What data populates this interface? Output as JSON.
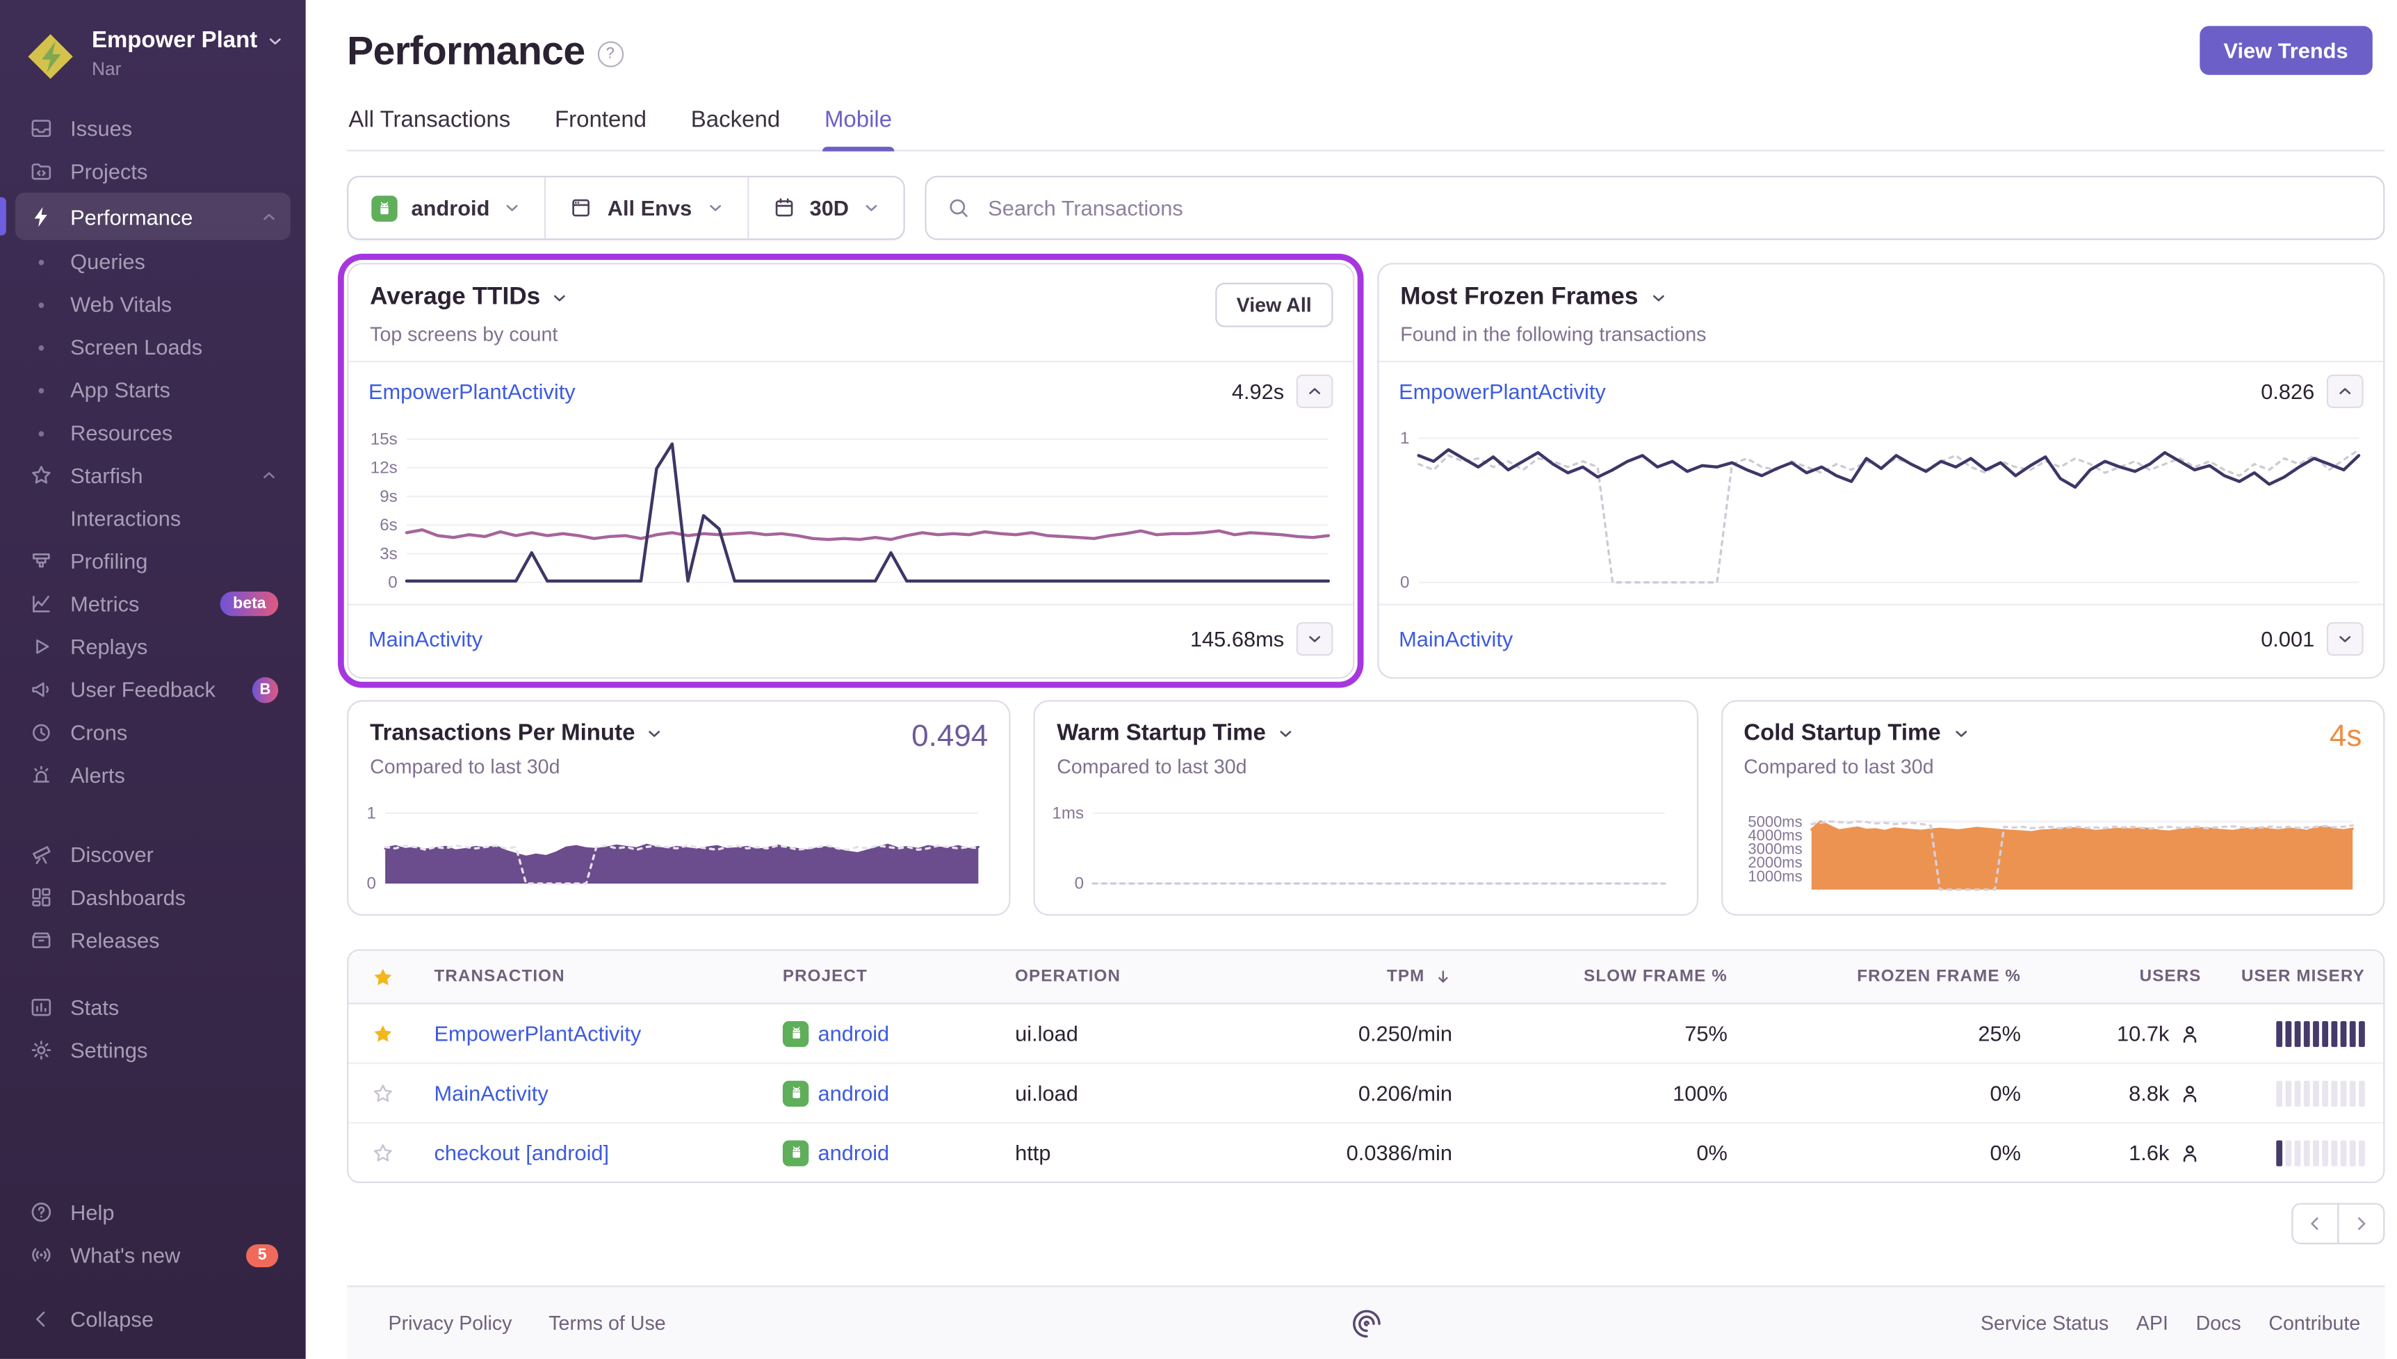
{
  "theme": {
    "accent": "#6C5FC7",
    "highlight": "#A637E0",
    "link": "#3D5BE0",
    "heading": "#2B2233",
    "muted": "#80708F",
    "gold": "#F1B71C",
    "orange_value": "#EE8D40",
    "sidebar_top": "#3E2D55",
    "sidebar_bottom": "#342443",
    "misery_filled": "#463A6B",
    "misery_empty": "#E9E5EF",
    "android_green": "#5FAE5A",
    "badge_red": "#EF6A5A"
  },
  "sidebar": {
    "org": {
      "name": "Empower Plant",
      "sub": "Nar"
    },
    "items": [
      {
        "icon": "issues",
        "label": "Issues"
      },
      {
        "icon": "projects",
        "label": "Projects"
      },
      {
        "icon": "lightning",
        "label": "Performance",
        "active": true,
        "chevron": "up"
      },
      {
        "bullet": true,
        "label": "Queries"
      },
      {
        "bullet": true,
        "label": "Web Vitals"
      },
      {
        "bullet": true,
        "label": "Screen Loads"
      },
      {
        "bullet": true,
        "label": "App Starts"
      },
      {
        "bullet": true,
        "label": "Resources"
      },
      {
        "icon": "star",
        "label": "Starfish",
        "chevron": "up"
      },
      {
        "indent": true,
        "label": "Interactions"
      },
      {
        "icon": "profiling",
        "label": "Profiling"
      },
      {
        "icon": "metrics",
        "label": "Metrics",
        "badge": {
          "text": "beta",
          "style": "pill"
        }
      },
      {
        "icon": "replays",
        "label": "Replays"
      },
      {
        "icon": "megaphone",
        "label": "User Feedback",
        "badge": {
          "text": "B",
          "style": "circle"
        }
      },
      {
        "icon": "crons",
        "label": "Crons"
      },
      {
        "icon": "alerts",
        "label": "Alerts"
      },
      {
        "icon": "discover",
        "label": "Discover",
        "gap": 24
      },
      {
        "icon": "dashboards",
        "label": "Dashboards"
      },
      {
        "icon": "releases",
        "label": "Releases"
      },
      {
        "icon": "stats",
        "label": "Stats",
        "gap": 16
      },
      {
        "icon": "settings",
        "label": "Settings"
      }
    ],
    "footer_items": [
      {
        "icon": "help",
        "label": "Help"
      },
      {
        "icon": "broadcast",
        "label": "What's new",
        "badge": {
          "text": "5",
          "style": "dot"
        }
      },
      {
        "icon": "collapse",
        "label": "Collapse",
        "gap": 14
      }
    ]
  },
  "header": {
    "title": "Performance",
    "help": "?",
    "view_trends": "View Trends",
    "tabs": [
      {
        "label": "All Transactions"
      },
      {
        "label": "Frontend"
      },
      {
        "label": "Backend"
      },
      {
        "label": "Mobile",
        "active": true
      }
    ]
  },
  "filters": {
    "project": "android",
    "env": "All Envs",
    "date": "30D",
    "search_placeholder": "Search Transactions"
  },
  "widgets": {
    "avg_ttids": {
      "title": "Average TTIDs",
      "subtitle": "Top screens by count",
      "view_all": "View All",
      "rows": [
        {
          "label": "EmpowerPlantActivity",
          "value": "4.92s",
          "state": "expanded"
        },
        {
          "label": "MainActivity",
          "value": "145.68ms",
          "state": "collapsed"
        }
      ]
    },
    "frozen": {
      "title": "Most Frozen Frames",
      "subtitle": "Found in the following transactions",
      "rows": [
        {
          "label": "EmpowerPlantActivity",
          "value": "0.826",
          "state": "expanded"
        },
        {
          "label": "MainActivity",
          "value": "0.001",
          "state": "collapsed"
        }
      ]
    },
    "tpm": {
      "title": "Transactions Per Minute",
      "subtitle": "Compared to last 30d",
      "value": "0.494"
    },
    "warm": {
      "title": "Warm Startup Time",
      "subtitle": "Compared to last 30d"
    },
    "cold": {
      "title": "Cold Startup Time",
      "subtitle": "Compared to last 30d",
      "value": "4s"
    }
  },
  "chart_data": [
    {
      "id": "avg_ttids",
      "type": "line",
      "title": "Average TTIDs",
      "ylim": [
        0,
        16
      ],
      "label_w": 36,
      "pad_b": 14,
      "yticks": [
        {
          "v": 0,
          "label": "0"
        },
        {
          "v": 3,
          "label": "3s"
        },
        {
          "v": 6,
          "label": "6s"
        },
        {
          "v": 9,
          "label": "9s"
        },
        {
          "v": 12,
          "label": "12s"
        },
        {
          "v": 15,
          "label": "15s"
        }
      ],
      "series": [
        {
          "name": "EmpowerPlantActivity",
          "color": "#a6649c",
          "width": 2,
          "values": [
            5.2,
            5.5,
            4.9,
            4.7,
            5.0,
            4.8,
            5.3,
            4.9,
            5.2,
            4.9,
            5.1,
            4.9,
            4.6,
            4.8,
            4.9,
            4.6,
            5.0,
            5.2,
            4.9,
            5.1,
            5.0,
            5.1,
            5.2,
            5.0,
            5.1,
            4.9,
            4.6,
            4.5,
            4.6,
            4.5,
            4.7,
            4.5,
            4.9,
            5.2,
            5.0,
            5.1,
            5.0,
            5.3,
            5.1,
            5.0,
            5.2,
            4.9,
            4.8,
            4.7,
            4.6,
            4.9,
            5.1,
            5.4,
            5.0,
            5.1,
            5.1,
            5.2,
            5.4,
            5.0,
            5.2,
            5.1,
            5.0,
            4.8,
            4.7,
            4.9
          ]
        },
        {
          "name": "MainActivity",
          "color": "#3f3566",
          "width": 2,
          "values": [
            0.15,
            0.15,
            0.15,
            0.15,
            0.15,
            0.15,
            0.15,
            0.15,
            3.1,
            0.15,
            0.15,
            0.15,
            0.15,
            0.15,
            0.15,
            0.15,
            11.9,
            14.5,
            0.15,
            7.0,
            5.6,
            0.15,
            0.15,
            0.15,
            0.15,
            0.15,
            0.15,
            0.15,
            0.15,
            0.15,
            0.15,
            3.1,
            0.15,
            0.15,
            0.15,
            0.15,
            0.15,
            0.15,
            0.15,
            0.15,
            0.15,
            0.15,
            0.15,
            0.15,
            0.15,
            0.15,
            0.15,
            0.15,
            0.15,
            0.15,
            0.15,
            0.15,
            0.15,
            0.15,
            0.15,
            0.15,
            0.15,
            0.15,
            0.15,
            0.15
          ]
        }
      ]
    },
    {
      "id": "frozen",
      "type": "line",
      "title": "Most Frozen Frames",
      "ylim": [
        0,
        1.06
      ],
      "label_w": 24,
      "pad_b": 14,
      "yticks": [
        {
          "v": 0,
          "label": "0"
        },
        {
          "v": 1,
          "label": "1"
        }
      ],
      "series": [
        {
          "name": "previous period",
          "color": "#cfc9d6",
          "width": 1.5,
          "dash": "2.5 3.5",
          "values": [
            0.82,
            0.78,
            0.88,
            0.84,
            0.86,
            0.8,
            0.84,
            0.78,
            0.86,
            0.84,
            0.8,
            0.84,
            0.8,
            0,
            0,
            0,
            0,
            0,
            0,
            0,
            0,
            0.82,
            0.86,
            0.8,
            0.78,
            0.84,
            0.8,
            0.76,
            0.82,
            0.78,
            0.84,
            0.8,
            0.86,
            0.82,
            0.78,
            0.84,
            0.88,
            0.8,
            0.76,
            0.84,
            0.8,
            0.78,
            0.84,
            0.8,
            0.86,
            0.82,
            0.76,
            0.8,
            0.84,
            0.78,
            0.82,
            0.86,
            0.8,
            0.84,
            0.78,
            0.74,
            0.82,
            0.78,
            0.86,
            0.82,
            0.88,
            0.78,
            0.85,
            0.92
          ]
        },
        {
          "name": "EmpowerPlantActivity",
          "color": "#3f3566",
          "width": 2,
          "values": [
            0.88,
            0.84,
            0.92,
            0.86,
            0.8,
            0.87,
            0.78,
            0.84,
            0.9,
            0.82,
            0.76,
            0.8,
            0.73,
            0.78,
            0.84,
            0.88,
            0.8,
            0.84,
            0.77,
            0.81,
            0.8,
            0.83,
            0.78,
            0.74,
            0.79,
            0.83,
            0.76,
            0.8,
            0.74,
            0.7,
            0.86,
            0.79,
            0.88,
            0.82,
            0.77,
            0.84,
            0.8,
            0.86,
            0.78,
            0.83,
            0.74,
            0.81,
            0.87,
            0.72,
            0.66,
            0.78,
            0.84,
            0.8,
            0.77,
            0.82,
            0.9,
            0.84,
            0.78,
            0.81,
            0.74,
            0.7,
            0.76,
            0.68,
            0.73,
            0.8,
            0.86,
            0.82,
            0.78,
            0.88
          ]
        }
      ]
    },
    {
      "id": "tpm",
      "type": "area",
      "title": "Transactions Per Minute",
      "ylim": [
        0,
        1
      ],
      "label_w": 16,
      "pad_b": 12,
      "yticks": [
        {
          "v": 0,
          "label": "0"
        },
        {
          "v": 1,
          "label": "1"
        }
      ],
      "series": [
        {
          "name": "current",
          "color": "#6b4c8c",
          "width": 1.5,
          "area": true,
          "fill": "#6b4c8c",
          "fill_opacity": 1,
          "values": [
            0.5,
            0.53,
            0.49,
            0.51,
            0.48,
            0.5,
            0.52,
            0.47,
            0.49,
            0.52,
            0.5,
            0.53,
            0.46,
            0.42,
            0.38,
            0.41,
            0.39,
            0.44,
            0.51,
            0.53,
            0.5,
            0.49,
            0.51,
            0.54,
            0.52,
            0.5,
            0.55,
            0.51,
            0.49,
            0.52,
            0.5,
            0.48,
            0.51,
            0.53,
            0.49,
            0.5,
            0.52,
            0.48,
            0.5,
            0.54,
            0.51,
            0.49,
            0.47,
            0.5,
            0.52,
            0.48,
            0.45,
            0.43,
            0.47,
            0.51,
            0.55,
            0.5,
            0.52,
            0.49,
            0.53,
            0.51,
            0.5,
            0.53,
            0.49,
            0.52
          ]
        },
        {
          "name": "previous period",
          "color": "#e6e2ec",
          "width": 1.5,
          "dash": "2.5 3.5",
          "values": [
            0.52,
            0.5,
            0.54,
            0.52,
            0.48,
            0.52,
            0.5,
            0.54,
            0.52,
            0.5,
            0.52,
            0.54,
            0.5,
            0.52,
            0,
            0,
            0,
            0,
            0,
            0,
            0,
            0.52,
            0.54,
            0.5,
            0.52,
            0.48,
            0.52,
            0.54,
            0.52,
            0.5,
            0.54,
            0.52,
            0.5,
            0.48,
            0.52,
            0.54,
            0.5,
            0.52,
            0.5,
            0.54,
            0.52,
            0.48,
            0.5,
            0.52,
            0.54,
            0.5,
            0.48,
            0.52,
            0.5,
            0.54,
            0.52,
            0.5,
            0.52,
            0.48,
            0.5,
            0.54,
            0.52,
            0.5,
            0.52,
            0.5
          ]
        }
      ]
    },
    {
      "id": "warm",
      "type": "line",
      "title": "Warm Startup Time",
      "ylim": [
        0,
        1
      ],
      "label_w": 30,
      "pad_b": 12,
      "yticks": [
        {
          "v": 0,
          "label": "0"
        },
        {
          "v": 1,
          "label": "1ms"
        }
      ],
      "series": [
        {
          "name": "current",
          "color": "#cfc9d6",
          "width": 1.5,
          "dash": "2.5 3.5",
          "values": [
            0,
            0,
            0,
            0,
            0,
            0,
            0,
            0,
            0,
            0
          ]
        }
      ]
    },
    {
      "id": "cold",
      "type": "area",
      "title": "Cold Startup Time",
      "ylim": [
        0,
        5600
      ],
      "label_w": 50,
      "pad_b": 8,
      "tick_font": 10,
      "yticks": [
        {
          "v": 1000,
          "label": "1000ms"
        },
        {
          "v": 2000,
          "label": "2000ms"
        },
        {
          "v": 3000,
          "label": "3000ms"
        },
        {
          "v": 4000,
          "label": "4000ms"
        },
        {
          "v": 5000,
          "label": "5000ms"
        }
      ],
      "series": [
        {
          "name": "current",
          "color": "#ec9351",
          "width": 1.5,
          "area": true,
          "fill": "#ec9351",
          "fill_opacity": 1,
          "values": [
            4400,
            5000,
            4650,
            4350,
            4450,
            4550,
            4380,
            4420,
            4300,
            4480,
            4420,
            4360,
            4310,
            4400,
            4460,
            4400,
            4350,
            4420,
            4520,
            4460,
            4400,
            4340,
            4300,
            4260,
            4210,
            4320,
            4360,
            4420,
            4520,
            4460,
            4400,
            4300,
            4360,
            4420,
            4460,
            4400,
            4500,
            4420,
            4300,
            4260,
            4360,
            4420,
            4460,
            4520,
            4400,
            4350,
            4300,
            4420,
            4460,
            4520,
            4400,
            4350,
            4460,
            4420,
            4300,
            4520,
            4620,
            4420,
            4360,
            4460
          ]
        },
        {
          "name": "previous period",
          "color": "#d6d0dc",
          "width": 1.5,
          "dash": "2.5 3.5",
          "values": [
            4800,
            4900,
            5000,
            4950,
            4900,
            5000,
            4950,
            4850,
            4900,
            4800,
            4850,
            4900,
            4800,
            4700,
            0,
            0,
            0,
            0,
            0,
            0,
            0,
            4600,
            4550,
            4600,
            4500,
            4550,
            4600,
            4500,
            4560,
            4600,
            4520,
            4560,
            4500,
            4620,
            4560,
            4600,
            4520,
            4480,
            4560,
            4600,
            4520,
            4560,
            4620,
            4500,
            4560,
            4600,
            4640,
            4560,
            4500,
            4560,
            4620,
            4560,
            4600,
            4520,
            4560,
            4600,
            4660,
            4560,
            4620,
            4700
          ]
        }
      ]
    }
  ],
  "table": {
    "columns": [
      {
        "key": "fav",
        "label": "",
        "type": "star"
      },
      {
        "key": "transaction",
        "label": "TRANSACTION"
      },
      {
        "key": "project",
        "label": "PROJECT"
      },
      {
        "key": "operation",
        "label": "OPERATION"
      },
      {
        "key": "tpm",
        "label": "TPM",
        "sorted": "desc",
        "align": "right"
      },
      {
        "key": "slow",
        "label": "SLOW FRAME %",
        "align": "right"
      },
      {
        "key": "frozen",
        "label": "FROZEN FRAME %",
        "align": "right"
      },
      {
        "key": "users",
        "label": "USERS",
        "align": "right"
      },
      {
        "key": "misery",
        "label": "USER MISERY",
        "align": "right"
      }
    ],
    "misery_total": 10,
    "rows": [
      {
        "starred": true,
        "transaction": "EmpowerPlantActivity",
        "project": "android",
        "operation": "ui.load",
        "tpm": "0.250/min",
        "slow": "75%",
        "frozen": "25%",
        "users": "10.7k",
        "misery_filled": 10
      },
      {
        "starred": false,
        "transaction": "MainActivity",
        "project": "android",
        "operation": "ui.load",
        "tpm": "0.206/min",
        "slow": "100%",
        "frozen": "0%",
        "users": "8.8k",
        "misery_filled": 0
      },
      {
        "starred": false,
        "transaction": "checkout [android]",
        "project": "android",
        "operation": "http",
        "tpm": "0.0386/min",
        "slow": "0%",
        "frozen": "0%",
        "users": "1.6k",
        "misery_filled": 1
      }
    ]
  },
  "pagination": {
    "prev": "previous",
    "next": "next"
  },
  "footer": {
    "left": [
      "Privacy Policy",
      "Terms of Use"
    ],
    "right": [
      "Service Status",
      "API",
      "Docs",
      "Contribute"
    ]
  }
}
